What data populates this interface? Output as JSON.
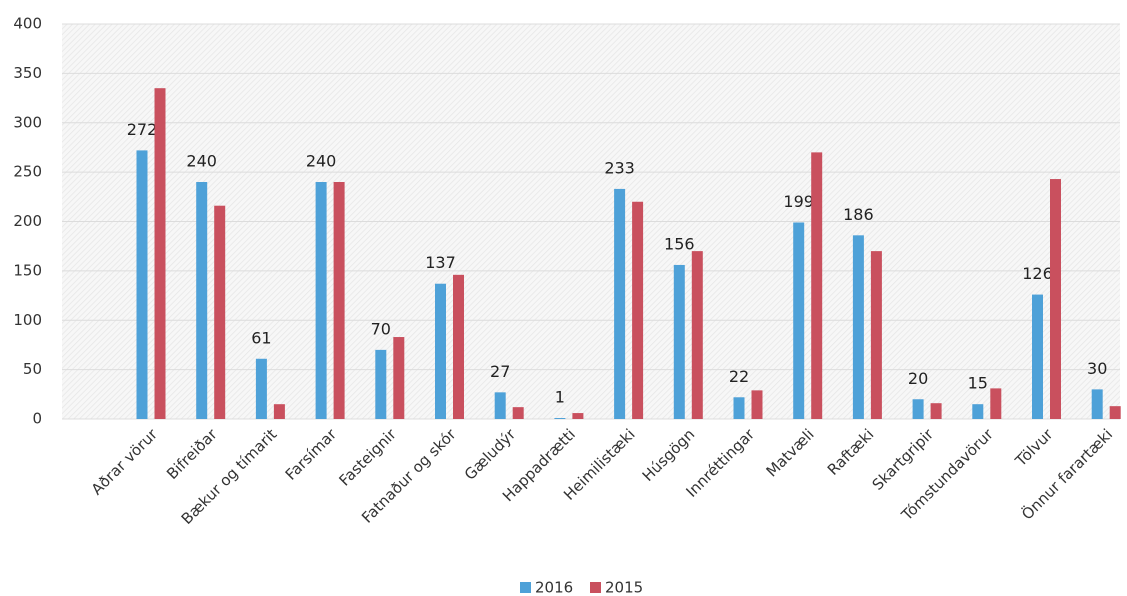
{
  "chart_data": {
    "type": "bar",
    "categories": [
      "Aðrar vörur",
      "Bifreiðar",
      "Bækur og tímarit",
      "Farsímar",
      "Fasteignir",
      "Fatnaður og skór",
      "Gæludýr",
      "Happadrætti",
      "Heimilistæki",
      "Húsgögn",
      "Innréttingar",
      "Matvæli",
      "Raftæki",
      "Skartgripir",
      "Tómstundavörur",
      "Tölvur",
      "Önnur farartæki"
    ],
    "series": [
      {
        "name": "2016",
        "color": "#4ea1d8",
        "values": [
          272,
          240,
          61,
          240,
          70,
          137,
          27,
          1,
          233,
          156,
          22,
          199,
          186,
          20,
          15,
          126,
          30
        ]
      },
      {
        "name": "2015",
        "color": "#c9505e",
        "values": [
          335,
          216,
          15,
          240,
          83,
          146,
          12,
          6,
          220,
          170,
          29,
          270,
          170,
          16,
          31,
          243,
          13
        ]
      }
    ],
    "ylim": [
      0,
      400
    ],
    "yticks": [
      0,
      50,
      100,
      150,
      200,
      250,
      300,
      350,
      400
    ],
    "grid": true,
    "legend": "bottom"
  }
}
